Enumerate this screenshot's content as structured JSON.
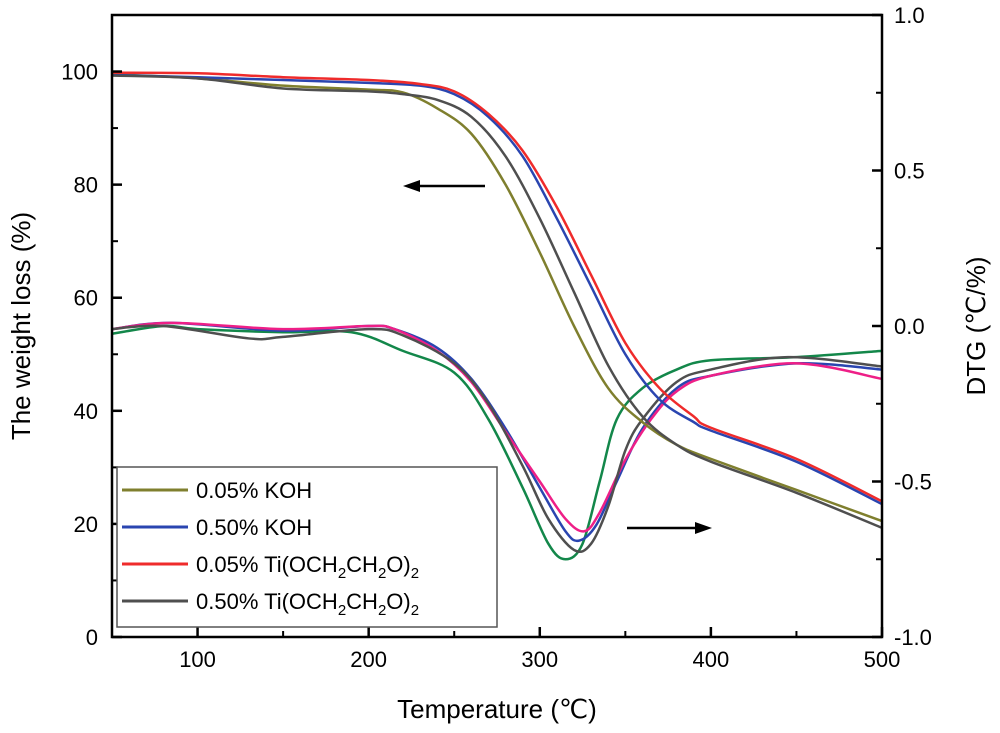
{
  "chart_data": {
    "type": "line",
    "xlabel": "Temperature (℃)",
    "ylabel": "The weight loss (%)",
    "y2label": "DTG (℃/%)",
    "xlim": [
      50,
      500
    ],
    "ylim": [
      0,
      110
    ],
    "y2lim": [
      -1.0,
      1.0
    ],
    "xticks": [
      "100",
      "200",
      "300",
      "400",
      "500"
    ],
    "yticks": [
      "0",
      "20",
      "40",
      "60",
      "80",
      "100"
    ],
    "y2ticks": [
      "-1.0",
      "-0.5",
      "0.0",
      "0.5",
      "1.0"
    ],
    "grid": false,
    "legend_position": "bottom-left",
    "legend": [
      {
        "label": "0.05% KOH",
        "color": "#7f7f2e"
      },
      {
        "label": "0.50% KOH",
        "color": "#2a45b0"
      },
      {
        "label": "0.05% Ti(OCH2CH2O)2",
        "color": "#ef2b2b"
      },
      {
        "label": "0.50% Ti(OCH2CH2O)2",
        "color": "#4f4f4f"
      }
    ],
    "tg_series": [
      {
        "name": "0.05% KOH",
        "color": "#7f7f2e",
        "x": [
          50,
          100,
          150,
          200,
          220,
          240,
          260,
          280,
          300,
          320,
          340,
          360,
          380,
          400,
          450,
          500
        ],
        "y": [
          99.5,
          98.8,
          97.5,
          96.8,
          96.3,
          93.5,
          89,
          80,
          68,
          55,
          44,
          38,
          34,
          31.5,
          26,
          20.5
        ]
      },
      {
        "name": "0.50% KOH",
        "color": "#2a45b0",
        "x": [
          50,
          100,
          150,
          200,
          230,
          250,
          270,
          290,
          310,
          330,
          350,
          370,
          390,
          400,
          450,
          500
        ],
        "y": [
          99.4,
          99,
          98.5,
          98,
          97.5,
          96,
          92,
          85,
          74,
          62,
          50,
          42,
          38,
          36.5,
          31,
          23.5
        ]
      },
      {
        "name": "0.05% Ti(OCH2CH2O)2",
        "color": "#ef2b2b",
        "x": [
          50,
          100,
          150,
          200,
          230,
          250,
          270,
          290,
          310,
          330,
          350,
          370,
          390,
          400,
          450,
          500
        ],
        "y": [
          99.8,
          99.7,
          99,
          98.5,
          97.8,
          96.5,
          92.5,
          86,
          76,
          64,
          52,
          44,
          39,
          37,
          31.5,
          24
        ]
      },
      {
        "name": "0.50% Ti(OCH2CH2O)2",
        "color": "#4f4f4f",
        "x": [
          50,
          100,
          150,
          200,
          220,
          240,
          260,
          280,
          300,
          320,
          340,
          360,
          380,
          400,
          450,
          500
        ],
        "y": [
          99.3,
          98.8,
          97,
          96.5,
          96,
          95,
          92,
          85,
          74,
          61,
          48,
          39,
          34,
          31,
          25.5,
          19.3
        ]
      }
    ],
    "dtg_series": [
      {
        "color": "#13874a",
        "x": [
          50,
          80,
          100,
          150,
          190,
          220,
          250,
          270,
          290,
          305,
          315,
          325,
          335,
          345,
          360,
          380,
          400,
          450,
          500
        ],
        "y": [
          -0.025,
          0,
          -0.01,
          -0.02,
          -0.02,
          -0.08,
          -0.15,
          -0.3,
          -0.52,
          -0.7,
          -0.75,
          -0.7,
          -0.5,
          -0.3,
          -0.2,
          -0.14,
          -0.11,
          -0.1,
          -0.08
        ]
      },
      {
        "color": "#2a45b0",
        "x": [
          50,
          85,
          150,
          200,
          215,
          240,
          260,
          280,
          300,
          315,
          323,
          333,
          345,
          360,
          380,
          400,
          450,
          500
        ],
        "y": [
          -0.01,
          0.01,
          -0.015,
          0,
          -0.01,
          -0.07,
          -0.17,
          -0.33,
          -0.52,
          -0.66,
          -0.69,
          -0.64,
          -0.5,
          -0.33,
          -0.2,
          -0.16,
          -0.12,
          -0.14
        ]
      },
      {
        "color": "#ee1f87",
        "x": [
          50,
          85,
          150,
          200,
          215,
          240,
          260,
          280,
          300,
          315,
          326,
          335,
          350,
          365,
          380,
          400,
          450,
          500
        ],
        "y": [
          -0.01,
          0.01,
          -0.01,
          0,
          -0.01,
          -0.08,
          -0.18,
          -0.34,
          -0.5,
          -0.62,
          -0.66,
          -0.6,
          -0.43,
          -0.3,
          -0.21,
          -0.16,
          -0.12,
          -0.17
        ]
      },
      {
        "color": "#4f4f4f",
        "x": [
          50,
          80,
          130,
          150,
          200,
          220,
          250,
          270,
          290,
          305,
          320,
          330,
          340,
          350,
          360,
          380,
          400,
          445,
          500
        ],
        "y": [
          -0.01,
          0,
          -0.04,
          -0.035,
          -0.01,
          -0.03,
          -0.12,
          -0.25,
          -0.45,
          -0.62,
          -0.72,
          -0.7,
          -0.58,
          -0.4,
          -0.3,
          -0.18,
          -0.14,
          -0.1,
          -0.13
        ]
      }
    ],
    "annotations": [
      "left-arrow pointing to weight-loss axis",
      "right-arrow pointing to DTG axis"
    ]
  }
}
